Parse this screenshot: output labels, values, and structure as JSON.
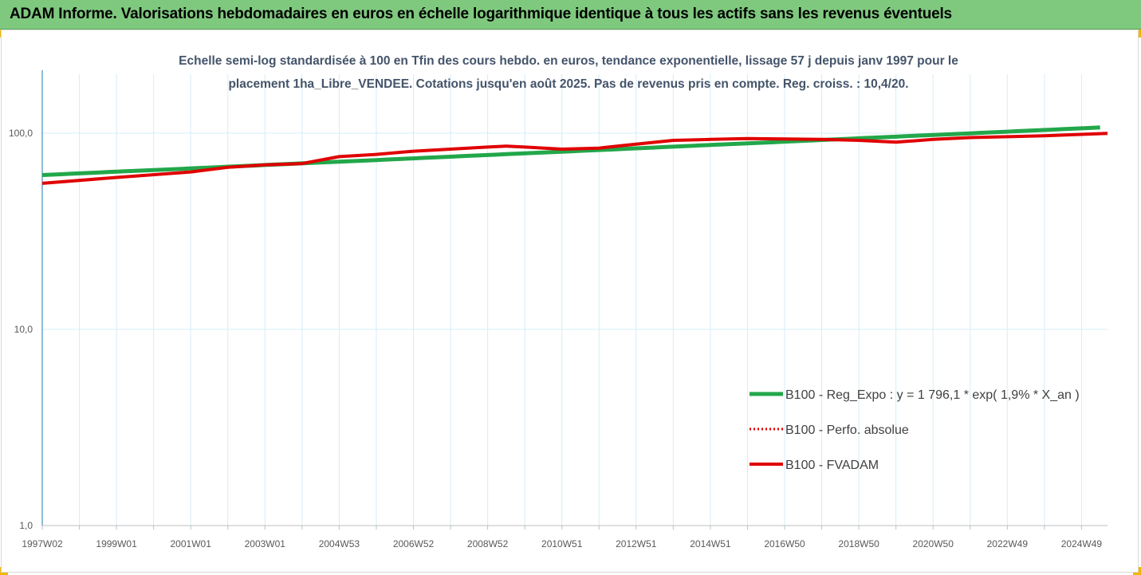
{
  "header": {
    "title": "ADAM Informe. Valorisations hebdomadaires en euros en échelle logarithmique identique à tous les actifs sans les revenus éventuels"
  },
  "colors": {
    "header_bg": "#7fc97f",
    "reg_expo": "#22a74a",
    "perfo_absolue": "#e00000",
    "fvadam": "#e00000",
    "axis": "#1f77b4",
    "grid": "#d6ecf7"
  },
  "chart_data": {
    "type": "line",
    "title_lines": [
      "Echelle semi-log standardisée à 100 en Tfin des cours hebdo. en euros, tendance exponentielle, lissage 57 j depuis janv 1997 pour le",
      "placement 1ha_Libre_VENDEE. Cotations jusqu'en août 2025. Pas de revenus pris en compte. Reg. croiss. : 10,4/20."
    ],
    "y_scale": "log",
    "ylim": [
      1,
      200
    ],
    "yticks": [
      {
        "value": 1,
        "label": "1,0"
      },
      {
        "value": 10,
        "label": "10,0"
      },
      {
        "value": 100,
        "label": "100,0"
      }
    ],
    "xlim": [
      1997.0,
      2025.7
    ],
    "xticks": [
      {
        "value": 1997.0,
        "label": "1997W02"
      },
      {
        "value": 1999.0,
        "label": "1999W01"
      },
      {
        "value": 2001.0,
        "label": "2001W01"
      },
      {
        "value": 2003.0,
        "label": "2003W01"
      },
      {
        "value": 2005.0,
        "label": "2004W53"
      },
      {
        "value": 2007.0,
        "label": "2006W52"
      },
      {
        "value": 2009.0,
        "label": "2008W52"
      },
      {
        "value": 2011.0,
        "label": "2010W51"
      },
      {
        "value": 2013.0,
        "label": "2012W51"
      },
      {
        "value": 2015.0,
        "label": "2014W51"
      },
      {
        "value": 2017.0,
        "label": "2016W50"
      },
      {
        "value": 2019.0,
        "label": "2018W50"
      },
      {
        "value": 2021.0,
        "label": "2020W50"
      },
      {
        "value": 2023.0,
        "label": "2022W49"
      },
      {
        "value": 2025.0,
        "label": "2024W49"
      }
    ],
    "grid": true,
    "legend_position": "right",
    "series": [
      {
        "name": "B100 - Reg_Expo : y = 1 796,1 * exp( 1,9% *  X_an )",
        "style": "solid-green",
        "points": [
          [
            1997.0,
            61.2
          ],
          [
            2025.7,
            107.4
          ]
        ]
      },
      {
        "name": "B100 - Perfo. absolue",
        "style": "dotted-red",
        "points": [
          [
            1997.0,
            55.5
          ],
          [
            1999.0,
            59.5
          ],
          [
            2001.0,
            63.5
          ],
          [
            2002.0,
            67
          ],
          [
            2003.0,
            69
          ],
          [
            2004.0,
            70
          ],
          [
            2004.5,
            73
          ],
          [
            2005.0,
            76
          ],
          [
            2006.0,
            78
          ],
          [
            2007.0,
            81
          ],
          [
            2008.0,
            83
          ],
          [
            2009.0,
            85
          ],
          [
            2009.5,
            86
          ],
          [
            2010.0,
            85
          ],
          [
            2011.0,
            83
          ],
          [
            2012.0,
            84
          ],
          [
            2013.0,
            88
          ],
          [
            2014.0,
            92
          ],
          [
            2015.0,
            93
          ],
          [
            2016.0,
            94
          ],
          [
            2017.0,
            93.5
          ],
          [
            2018.0,
            93
          ],
          [
            2019.0,
            92
          ],
          [
            2020.0,
            90
          ],
          [
            2021.0,
            93
          ],
          [
            2022.0,
            95
          ],
          [
            2023.0,
            96
          ],
          [
            2024.0,
            97
          ],
          [
            2025.7,
            99.8
          ]
        ]
      },
      {
        "name": "B100 - FVADAM",
        "style": "solid-red",
        "points": [
          [
            1997.0,
            55.5
          ],
          [
            1999.0,
            59.5
          ],
          [
            2001.0,
            63.5
          ],
          [
            2002.0,
            67
          ],
          [
            2003.0,
            69
          ],
          [
            2004.0,
            70
          ],
          [
            2004.5,
            73
          ],
          [
            2005.0,
            76
          ],
          [
            2006.0,
            78
          ],
          [
            2007.0,
            81
          ],
          [
            2008.0,
            83
          ],
          [
            2009.0,
            85
          ],
          [
            2009.5,
            86
          ],
          [
            2010.0,
            85
          ],
          [
            2011.0,
            83
          ],
          [
            2012.0,
            84
          ],
          [
            2013.0,
            88
          ],
          [
            2014.0,
            92
          ],
          [
            2015.0,
            93
          ],
          [
            2016.0,
            94
          ],
          [
            2017.0,
            93.5
          ],
          [
            2018.0,
            93
          ],
          [
            2019.0,
            92
          ],
          [
            2020.0,
            90
          ],
          [
            2021.0,
            93
          ],
          [
            2022.0,
            95
          ],
          [
            2023.0,
            96
          ],
          [
            2024.0,
            97
          ],
          [
            2025.7,
            99.8
          ]
        ]
      }
    ]
  }
}
